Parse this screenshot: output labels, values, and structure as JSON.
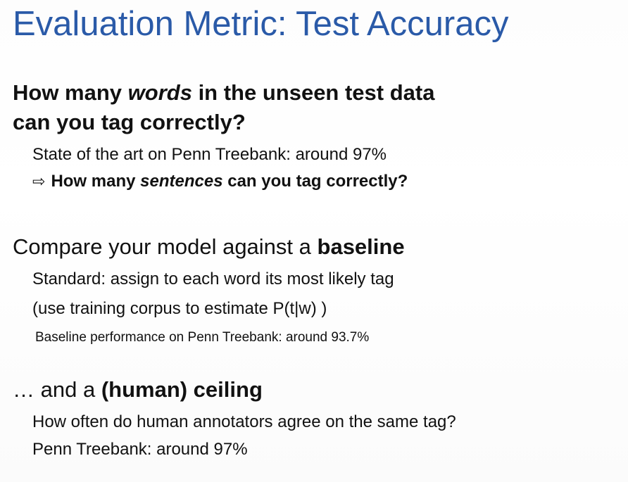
{
  "slide": {
    "title": "Evaluation Metric: Test Accuracy",
    "q1": {
      "part1": "How many ",
      "em": "words",
      "part2": " in the unseen test data",
      "line2": "can you tag correctly?"
    },
    "sota": "State of the art on Penn Treebank: around 97%",
    "sentences": {
      "arrow": "⇨",
      "part1": "How many ",
      "em": "sentences",
      "part2": " can you tag correctly?"
    },
    "compare": {
      "part1": "Compare your model against a ",
      "bold": "baseline"
    },
    "standard": "Standard: assign to each word its most likely tag",
    "use_training": "(use training corpus to estimate P(t|w) )",
    "baseline_perf": "Baseline performance on Penn Treebank: around 93.7%",
    "ceiling": {
      "part1": "… and a ",
      "bold": "(human) ceiling"
    },
    "how_often": "How often do human annotators agree on the same tag?",
    "penn": "Penn Treebank: around 97%"
  }
}
